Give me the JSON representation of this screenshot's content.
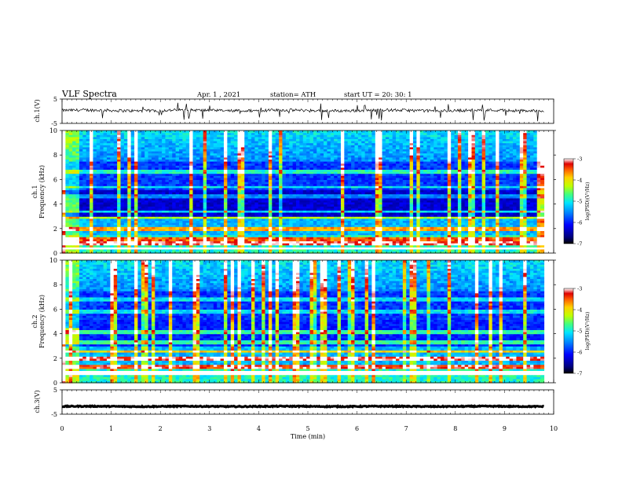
{
  "header": {
    "title": "VLF  Spectra",
    "date": "Apr. 1  , 2021",
    "station": "station= ATH",
    "start": "start  UT  =    20: 30: 1"
  },
  "chart_data": [
    {
      "id": "ch1-waveform",
      "type": "line",
      "ylabel": "ch.1(V)",
      "ylim": [
        -5,
        5
      ],
      "yticks": [
        "5",
        "-5"
      ],
      "xlim": [
        0,
        10
      ],
      "data_extent_min": [
        0,
        9.8
      ],
      "approx_mean_v": 0.3,
      "approx_noise_v": 0.6,
      "spikes_down": true
    },
    {
      "id": "ch1-spectrogram",
      "type": "heatmap",
      "ylabel": "ch.1\nFrequency  (kHz)",
      "ylim": [
        0,
        10
      ],
      "yticks": [
        "0",
        "2",
        "4",
        "6",
        "8",
        "10"
      ],
      "xlim": [
        0,
        10
      ],
      "data_extent_min": [
        0,
        9.8
      ],
      "colorbar": {
        "label": "log(PSD)(V²/Hz)",
        "range": [
          -7,
          -3
        ],
        "ticks": [
          "-3",
          "-4",
          "-5",
          "-6",
          "-7"
        ],
        "colormap": "jet"
      }
    },
    {
      "id": "ch2-spectrogram",
      "type": "heatmap",
      "ylabel": "ch.2\nFrequency  (kHz)",
      "ylim": [
        0,
        10
      ],
      "yticks": [
        "0",
        "2",
        "4",
        "6",
        "8",
        "10"
      ],
      "xlim": [
        0,
        10
      ],
      "data_extent_min": [
        0,
        9.8
      ],
      "colorbar": {
        "label": "log(PSD)(V²/Hz)",
        "range": [
          -7,
          -3
        ],
        "ticks": [
          "-3",
          "-4",
          "-5",
          "-6",
          "-7"
        ],
        "colormap": "jet"
      }
    },
    {
      "id": "ch3-waveform",
      "type": "line",
      "ylabel": "ch.3(V)",
      "ylim": [
        -5,
        5
      ],
      "yticks": [
        "5",
        "-5"
      ],
      "xlim": [
        0,
        10
      ],
      "data_extent_min": [
        0,
        9.8
      ],
      "approx_mean_v": -1.8,
      "approx_noise_v": 0.2
    }
  ],
  "xaxis": {
    "label": "Time  (min)",
    "ticks": [
      "0",
      "1",
      "2",
      "3",
      "4",
      "5",
      "6",
      "7",
      "8",
      "9",
      "10"
    ]
  }
}
